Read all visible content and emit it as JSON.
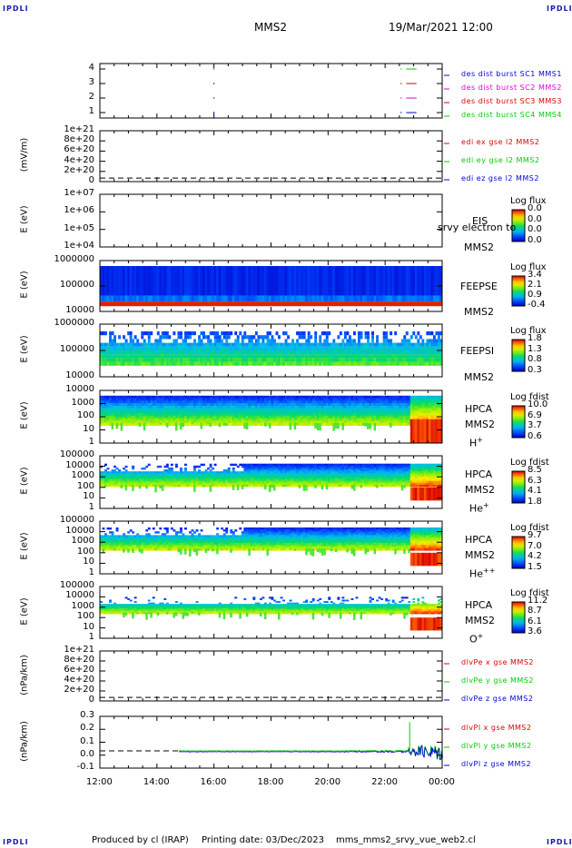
{
  "corner_labels": {
    "tl": "IPDLI",
    "tr": "IPDLI",
    "bl": "IPDLI",
    "br": "IPDLI"
  },
  "header": {
    "mission": "MMS2",
    "datetime": "19/Mar/2021 12:00"
  },
  "footer": {
    "produced_by": "Produced by cl (IRAP)",
    "printing_date": "Printing date: 03/Dec/2023",
    "script": "mms_mms2_srvy_vue_web2.cl"
  },
  "colors": {
    "red": "#dd0000",
    "green": "#00cc00",
    "blue": "#0000dd",
    "magenta": "#dd00dd",
    "black": "#000000"
  },
  "chart_data": {
    "type": "panel-stack",
    "x_axis": {
      "start": "12:00",
      "end": "00:00",
      "tick_labels": [
        "12:00",
        "14:00",
        "16:00",
        "18:00",
        "20:00",
        "22:00",
        "00:00"
      ]
    },
    "panels": [
      {
        "id": "burst",
        "ylabel": "",
        "yticks": [
          "4",
          "3",
          "2",
          "1"
        ],
        "legend": [
          {
            "text": "des dist burst SC1 MMS1",
            "color": "#0000dd"
          },
          {
            "text": "des dist burst SC2 MMS2",
            "color": "#dd00dd"
          },
          {
            "text": "des dist burst SC3 MMS3",
            "color": "#dd0000"
          },
          {
            "text": "des dist burst SC4 MMS4",
            "color": "#00cc00"
          }
        ]
      },
      {
        "id": "edi",
        "ylabel": "(mV/m)",
        "yticks": [
          "1e+21",
          "8e+20",
          "6e+20",
          "4e+20",
          "2e+20",
          "0"
        ],
        "legend": [
          {
            "text": "edi ex gse l2 MMS2",
            "color": "#dd0000"
          },
          {
            "text": "edi ey gse l2 MMS2",
            "color": "#00cc00"
          },
          {
            "text": "edi ez gse l2 MMS2",
            "color": "#0000dd"
          }
        ]
      },
      {
        "id": "eis",
        "ylabel": "E (eV)",
        "yticks": [
          "1e+07",
          "1e+06",
          "1e+05",
          "1e+04"
        ],
        "instrument": [
          "EIS",
          "MMS2"
        ],
        "overlay": "srvy electron to",
        "cb_title": "Log flux",
        "cb_ticks": [
          "0.0",
          "0.0",
          "0.0",
          "0.0"
        ]
      },
      {
        "id": "feepse",
        "ylabel": "E (eV)",
        "yticks": [
          "1000000",
          "100000",
          "10000"
        ],
        "instrument": [
          "FEEPSE",
          "MMS2"
        ],
        "cb_title": "Log flux",
        "cb_ticks": [
          "3.4",
          "2.1",
          "0.9",
          "-0.4"
        ]
      },
      {
        "id": "feepsi",
        "ylabel": "E (eV)",
        "yticks": [
          "1000000",
          "100000",
          "10000"
        ],
        "instrument": [
          "FEEPSI",
          "MMS2"
        ],
        "cb_title": "Log flux",
        "cb_ticks": [
          "1.8",
          "1.3",
          "0.8",
          "0.3"
        ]
      },
      {
        "id": "hpca_h",
        "ylabel": "E (eV)",
        "yticks": [
          "10000",
          "1000",
          "100",
          "10",
          "1"
        ],
        "instrument": [
          "HPCA",
          "MMS2"
        ],
        "species": "H",
        "species_sup": "+",
        "cb_title": "Log fdist",
        "cb_ticks": [
          "10.0",
          "6.9",
          "3.7",
          "0.6"
        ]
      },
      {
        "id": "hpca_he",
        "ylabel": "E (eV)",
        "yticks": [
          "100000",
          "10000",
          "1000",
          "100",
          "10",
          "1"
        ],
        "instrument": [
          "HPCA",
          "MMS2"
        ],
        "species": "He",
        "species_sup": "+",
        "cb_title": "Log fdist",
        "cb_ticks": [
          "8.5",
          "6.3",
          "4.1",
          "1.8"
        ]
      },
      {
        "id": "hpca_he2",
        "ylabel": "E (eV)",
        "yticks": [
          "100000",
          "10000",
          "1000",
          "100",
          "10",
          "1"
        ],
        "instrument": [
          "HPCA",
          "MMS2"
        ],
        "species": "He",
        "species_sup": "++",
        "cb_title": "Log fdist",
        "cb_ticks": [
          "9.7",
          "7.0",
          "4.2",
          "1.5"
        ]
      },
      {
        "id": "hpca_o",
        "ylabel": "E (eV)",
        "yticks": [
          "100000",
          "10000",
          "1000",
          "100",
          "10",
          "1"
        ],
        "instrument": [
          "HPCA",
          "MMS2"
        ],
        "species": "O",
        "species_sup": "+",
        "cb_title": "Log fdist",
        "cb_ticks": [
          "11.2",
          "8.7",
          "6.1",
          "3.6"
        ]
      },
      {
        "id": "divpe",
        "ylabel": "(nPa/km)",
        "yticks": [
          "1e+21",
          "8e+20",
          "6e+20",
          "4e+20",
          "2e+20",
          "0"
        ],
        "legend": [
          {
            "text": "dlvPe x gse MMS2",
            "color": "#dd0000"
          },
          {
            "text": "dlvPe y gse MMS2",
            "color": "#00cc00"
          },
          {
            "text": "dlvPe z gse MMS2",
            "color": "#0000dd"
          }
        ]
      },
      {
        "id": "divpi",
        "ylabel": "(nPa/km)",
        "yticks": [
          "0.3",
          "0.2",
          "0.1",
          "0.0",
          "-0.1"
        ],
        "ylim": [
          -0.15,
          0.3
        ],
        "legend": [
          {
            "text": "dlvPl x gse MMS2",
            "color": "#dd0000"
          },
          {
            "text": "dlvPl y gse MMS2",
            "color": "#00cc00"
          },
          {
            "text": "dlvPl z gse MMS2",
            "color": "#0000dd"
          }
        ]
      }
    ]
  }
}
